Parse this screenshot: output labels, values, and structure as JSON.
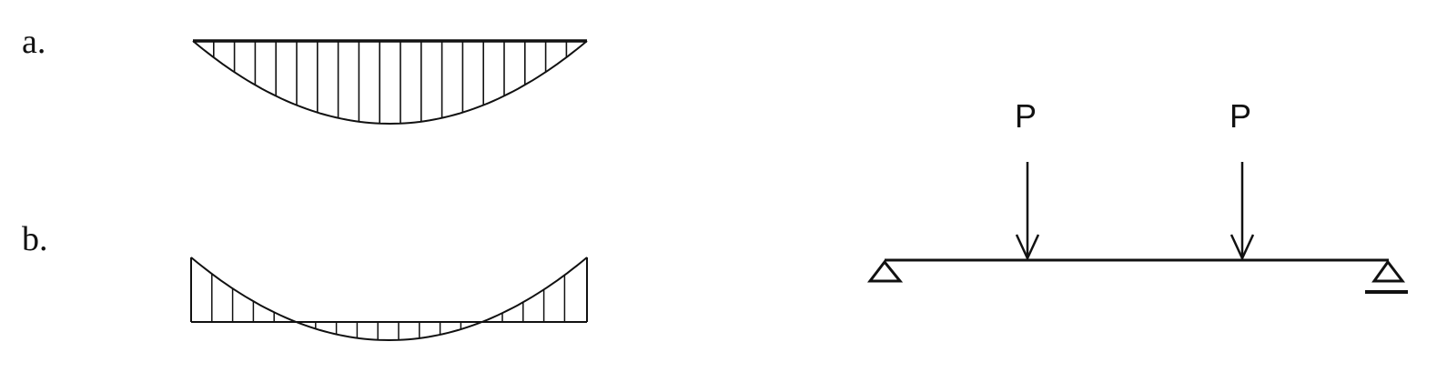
{
  "figure": {
    "diagrams": [
      {
        "id": "a",
        "label": "a.",
        "shape": "parabolic-sag"
      },
      {
        "id": "b",
        "label": "b.",
        "shape": "shifted-parabola-with-end-values"
      }
    ],
    "beam": {
      "loads": [
        {
          "label": "P"
        },
        {
          "label": "P"
        }
      ],
      "supports": [
        "pin",
        "roller"
      ]
    }
  }
}
